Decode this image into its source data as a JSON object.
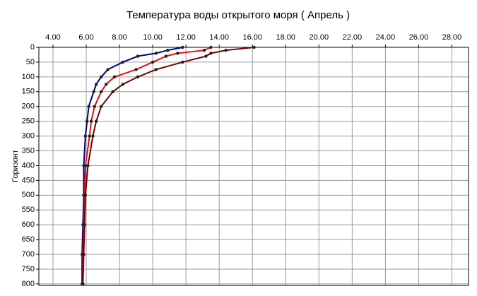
{
  "chart_data": {
    "type": "line",
    "title": "Температура воды открытого моря     ( Апрель )",
    "y_label": "Горизонт",
    "y": [
      0,
      10,
      20,
      30,
      50,
      75,
      100,
      125,
      150,
      200,
      250,
      300,
      400,
      500,
      600,
      700,
      800
    ],
    "series": [
      {
        "color": "#000080",
        "values": [
          11.8,
          10.9,
          10.2,
          9.1,
          8.2,
          7.3,
          6.9,
          6.6,
          6.45,
          6.15,
          6.05,
          5.95,
          5.85,
          5.85,
          5.8,
          5.75,
          5.75
        ]
      },
      {
        "color": "#e01010",
        "values": [
          13.5,
          13.1,
          11.5,
          10.8,
          10.0,
          9.0,
          7.7,
          7.2,
          6.9,
          6.5,
          6.3,
          6.2,
          5.95,
          5.9,
          5.85,
          5.8,
          5.8
        ]
      },
      {
        "color": "#700000",
        "values": [
          16.1,
          14.4,
          13.5,
          13.2,
          11.8,
          10.2,
          9.1,
          8.2,
          7.6,
          6.9,
          6.6,
          6.4,
          6.1,
          5.95,
          5.9,
          5.85,
          5.8
        ]
      }
    ],
    "xlim": [
      3.15,
      29
    ],
    "ylim": [
      0,
      805
    ],
    "y_inverted": true,
    "x_axis_position": "top",
    "xticks": [
      {
        "value": 4,
        "label": "4.00"
      },
      {
        "value": 6,
        "label": "6.00"
      },
      {
        "value": 8,
        "label": "8.00"
      },
      {
        "value": 10,
        "label": "10.00"
      },
      {
        "value": 12,
        "label": "12.00"
      },
      {
        "value": 14,
        "label": "14.00"
      },
      {
        "value": 16,
        "label": "16.00"
      },
      {
        "value": 18,
        "label": "18.00"
      },
      {
        "value": 20,
        "label": "20.00"
      },
      {
        "value": 22,
        "label": "22.00"
      },
      {
        "value": 24,
        "label": "24.00"
      },
      {
        "value": 26,
        "label": "26.00"
      },
      {
        "value": 28,
        "label": "28.00"
      }
    ],
    "yticks": [
      0,
      50,
      100,
      150,
      200,
      250,
      300,
      350,
      400,
      450,
      500,
      550,
      600,
      650,
      700,
      750,
      800
    ],
    "grid": true
  }
}
